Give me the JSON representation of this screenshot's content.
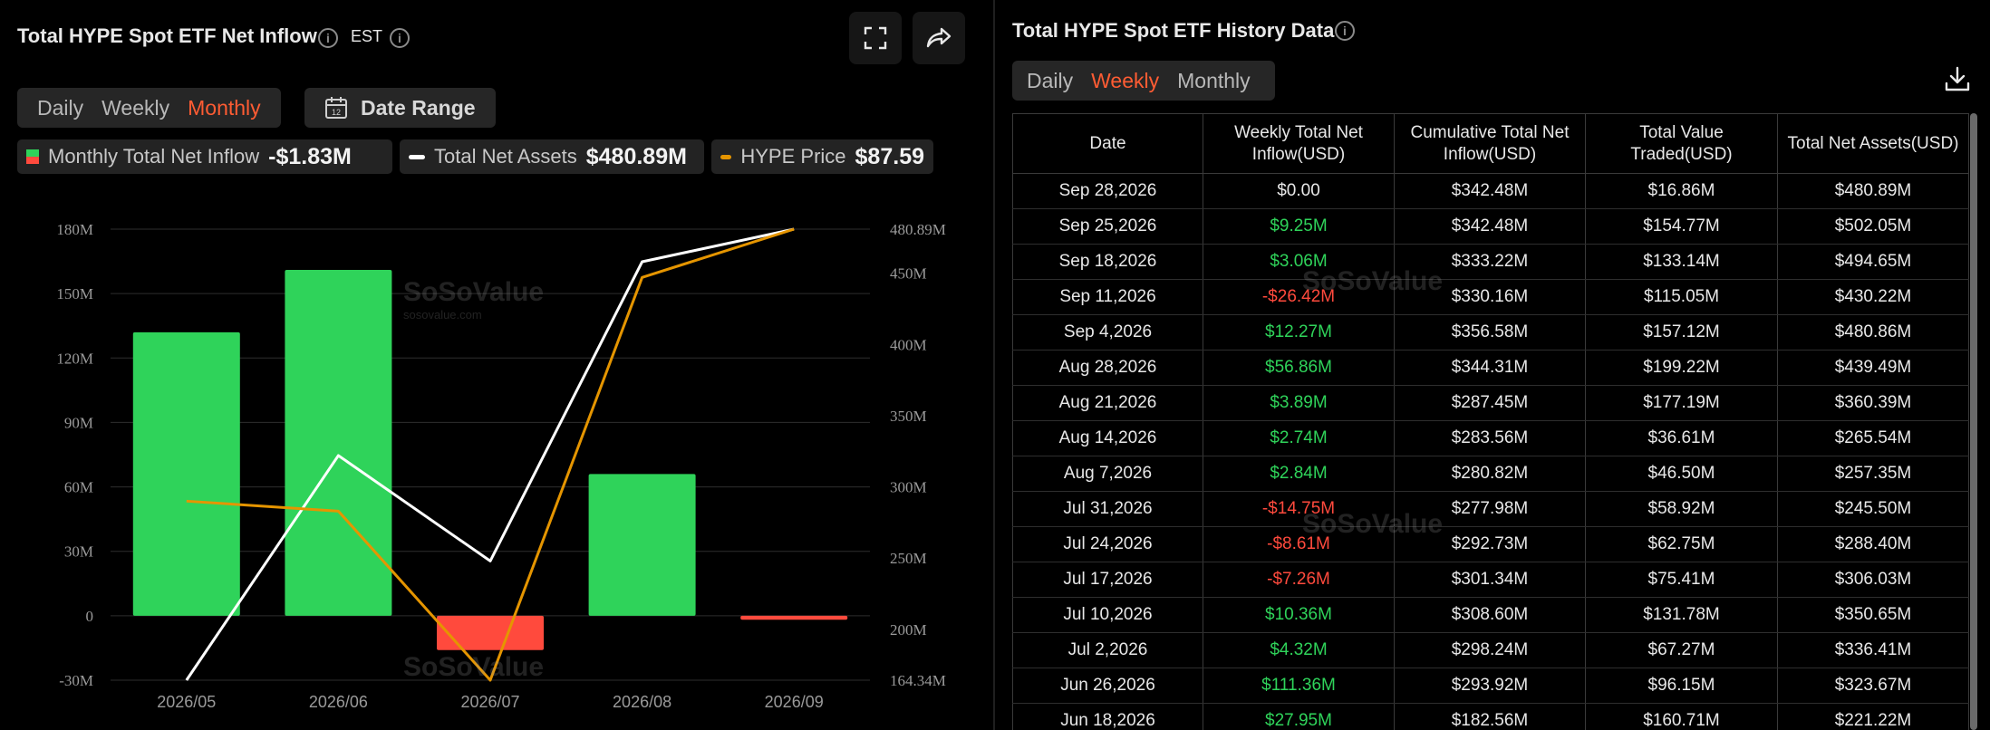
{
  "left": {
    "title": "Total HYPE Spot ETF Net Inflow",
    "timezone": "EST",
    "icons": [
      "info-icon",
      "fullscreen-icon",
      "share-icon",
      "calendar-icon"
    ],
    "period_tabs": [
      {
        "label": "Daily",
        "active": false
      },
      {
        "label": "Weekly",
        "active": false
      },
      {
        "label": "Monthly",
        "active": true
      }
    ],
    "date_range_label": "Date Range",
    "legend": [
      {
        "label": "Monthly Total Net Inflow",
        "value": "-$1.83M",
        "color": "#2fd35a"
      },
      {
        "label": "Total Net Assets",
        "value": "$480.89M",
        "color": "#ffffff"
      },
      {
        "label": "HYPE Price",
        "value": "$87.59",
        "color": "#e59500"
      }
    ],
    "watermark": {
      "name": "SoSoValue",
      "domain": "sosovalue.com"
    }
  },
  "chart_data": {
    "type": "bar",
    "categories": [
      "2026/05",
      "2026/06",
      "2026/07",
      "2026/08",
      "2026/09"
    ],
    "left_axis_ticks": [
      "180M",
      "150M",
      "120M",
      "90M",
      "60M",
      "30M",
      "0",
      "-30M"
    ],
    "ylim": [
      -30,
      180
    ],
    "right_axis_ticks": [
      "480.89M",
      "450M",
      "400M",
      "350M",
      "300M",
      "250M",
      "200M",
      "164.34M"
    ],
    "y2lim": [
      164.34,
      480.89
    ],
    "series": [
      {
        "name": "Monthly Total Net Inflow",
        "type": "bar",
        "unit": "M",
        "values": [
          132,
          161,
          -16,
          66,
          -1.83
        ],
        "colors": [
          "#2fd35a",
          "#2fd35a",
          "#ff4a3d",
          "#2fd35a",
          "#ff4a3d"
        ]
      },
      {
        "name": "Total Net Assets",
        "type": "line",
        "axis": "right",
        "unit": "M",
        "values": [
          164.34,
          322,
          248,
          458,
          480.89
        ],
        "color": "#ffffff"
      },
      {
        "name": "HYPE Price",
        "type": "line",
        "axis": "right",
        "values": [
          290,
          283,
          164.34,
          447,
          480.89
        ],
        "color": "#e59500"
      }
    ],
    "grid": true
  },
  "right": {
    "title": "Total HYPE Spot ETF History Data",
    "period_tabs": [
      {
        "label": "Daily",
        "active": false
      },
      {
        "label": "Weekly",
        "active": true
      },
      {
        "label": "Monthly",
        "active": false
      }
    ],
    "columns": [
      "Date",
      "Weekly Total Net Inflow(USD)",
      "Cumulative Total Net Inflow(USD)",
      "Total Value Traded(USD)",
      "Total Net Assets(USD)"
    ],
    "rows": [
      {
        "date": "Sep 28,2026",
        "inflow": "$0.00",
        "sign": "zero",
        "cumulative": "$342.48M",
        "traded": "$16.86M",
        "assets": "$480.89M"
      },
      {
        "date": "Sep 25,2026",
        "inflow": "$9.25M",
        "sign": "pos",
        "cumulative": "$342.48M",
        "traded": "$154.77M",
        "assets": "$502.05M"
      },
      {
        "date": "Sep 18,2026",
        "inflow": "$3.06M",
        "sign": "pos",
        "cumulative": "$333.22M",
        "traded": "$133.14M",
        "assets": "$494.65M"
      },
      {
        "date": "Sep 11,2026",
        "inflow": "-$26.42M",
        "sign": "neg",
        "cumulative": "$330.16M",
        "traded": "$115.05M",
        "assets": "$430.22M"
      },
      {
        "date": "Sep 4,2026",
        "inflow": "$12.27M",
        "sign": "pos",
        "cumulative": "$356.58M",
        "traded": "$157.12M",
        "assets": "$480.86M"
      },
      {
        "date": "Aug 28,2026",
        "inflow": "$56.86M",
        "sign": "pos",
        "cumulative": "$344.31M",
        "traded": "$199.22M",
        "assets": "$439.49M"
      },
      {
        "date": "Aug 21,2026",
        "inflow": "$3.89M",
        "sign": "pos",
        "cumulative": "$287.45M",
        "traded": "$177.19M",
        "assets": "$360.39M"
      },
      {
        "date": "Aug 14,2026",
        "inflow": "$2.74M",
        "sign": "pos",
        "cumulative": "$283.56M",
        "traded": "$36.61M",
        "assets": "$265.54M"
      },
      {
        "date": "Aug 7,2026",
        "inflow": "$2.84M",
        "sign": "pos",
        "cumulative": "$280.82M",
        "traded": "$46.50M",
        "assets": "$257.35M"
      },
      {
        "date": "Jul 31,2026",
        "inflow": "-$14.75M",
        "sign": "neg",
        "cumulative": "$277.98M",
        "traded": "$58.92M",
        "assets": "$245.50M"
      },
      {
        "date": "Jul 24,2026",
        "inflow": "-$8.61M",
        "sign": "neg",
        "cumulative": "$292.73M",
        "traded": "$62.75M",
        "assets": "$288.40M"
      },
      {
        "date": "Jul 17,2026",
        "inflow": "-$7.26M",
        "sign": "neg",
        "cumulative": "$301.34M",
        "traded": "$75.41M",
        "assets": "$306.03M"
      },
      {
        "date": "Jul 10,2026",
        "inflow": "$10.36M",
        "sign": "pos",
        "cumulative": "$308.60M",
        "traded": "$131.78M",
        "assets": "$350.65M"
      },
      {
        "date": "Jul 2,2026",
        "inflow": "$4.32M",
        "sign": "pos",
        "cumulative": "$298.24M",
        "traded": "$67.27M",
        "assets": "$336.41M"
      },
      {
        "date": "Jun 26,2026",
        "inflow": "$111.36M",
        "sign": "pos",
        "cumulative": "$293.92M",
        "traded": "$96.15M",
        "assets": "$323.67M"
      },
      {
        "date": "Jun 18,2026",
        "inflow": "$27.95M",
        "sign": "pos",
        "cumulative": "$182.56M",
        "traded": "$160.71M",
        "assets": "$221.22M"
      }
    ]
  }
}
